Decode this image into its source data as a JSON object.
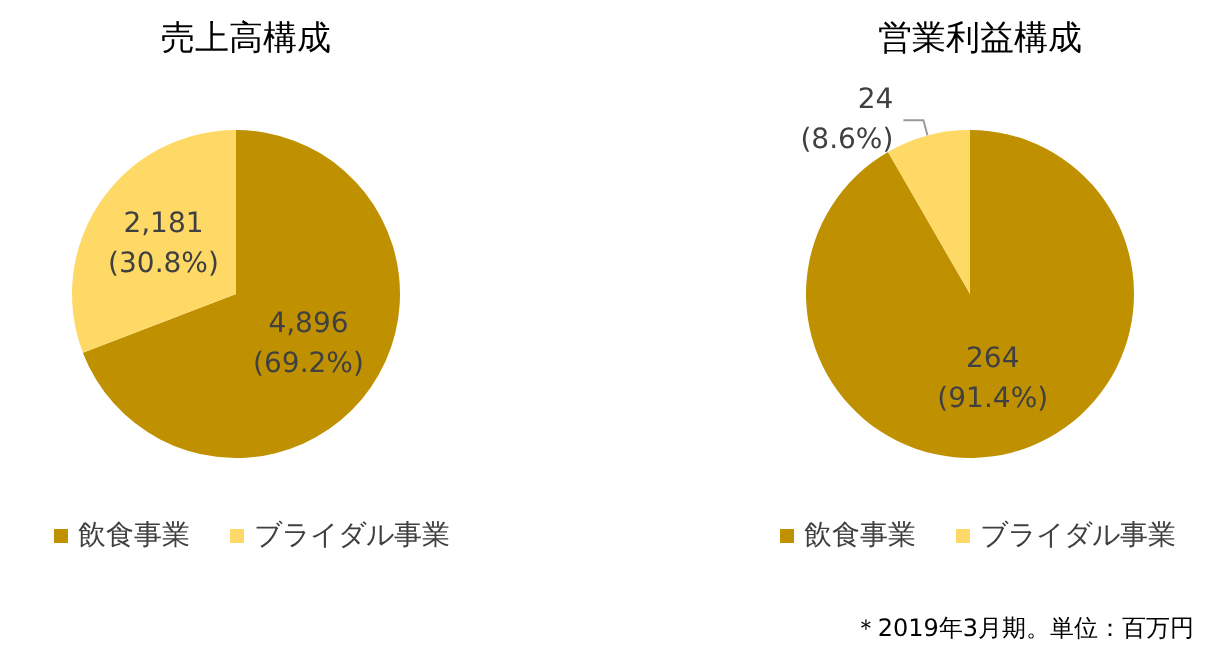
{
  "chart_data": [
    {
      "type": "pie",
      "title": "売上高構成",
      "categories": [
        "飲食事業",
        "ブライダル事業"
      ],
      "values": [
        4896,
        2181
      ],
      "colors": [
        "#bf9000",
        "#ffd966"
      ],
      "value_labels": [
        "4,896\n(69.2%)",
        "2,181\n(30.8%)"
      ],
      "legend": "bottom"
    },
    {
      "type": "pie",
      "title": "営業利益構成",
      "categories": [
        "飲食事業",
        "ブライダル事業"
      ],
      "values": [
        264,
        24
      ],
      "colors": [
        "#bf9000",
        "#ffd966"
      ],
      "value_labels": [
        "264\n(91.4%)",
        "24\n(8.6%)"
      ],
      "legend": "bottom",
      "annotations": [
        "＊2019年3月期。単位：百万円"
      ]
    }
  ]
}
